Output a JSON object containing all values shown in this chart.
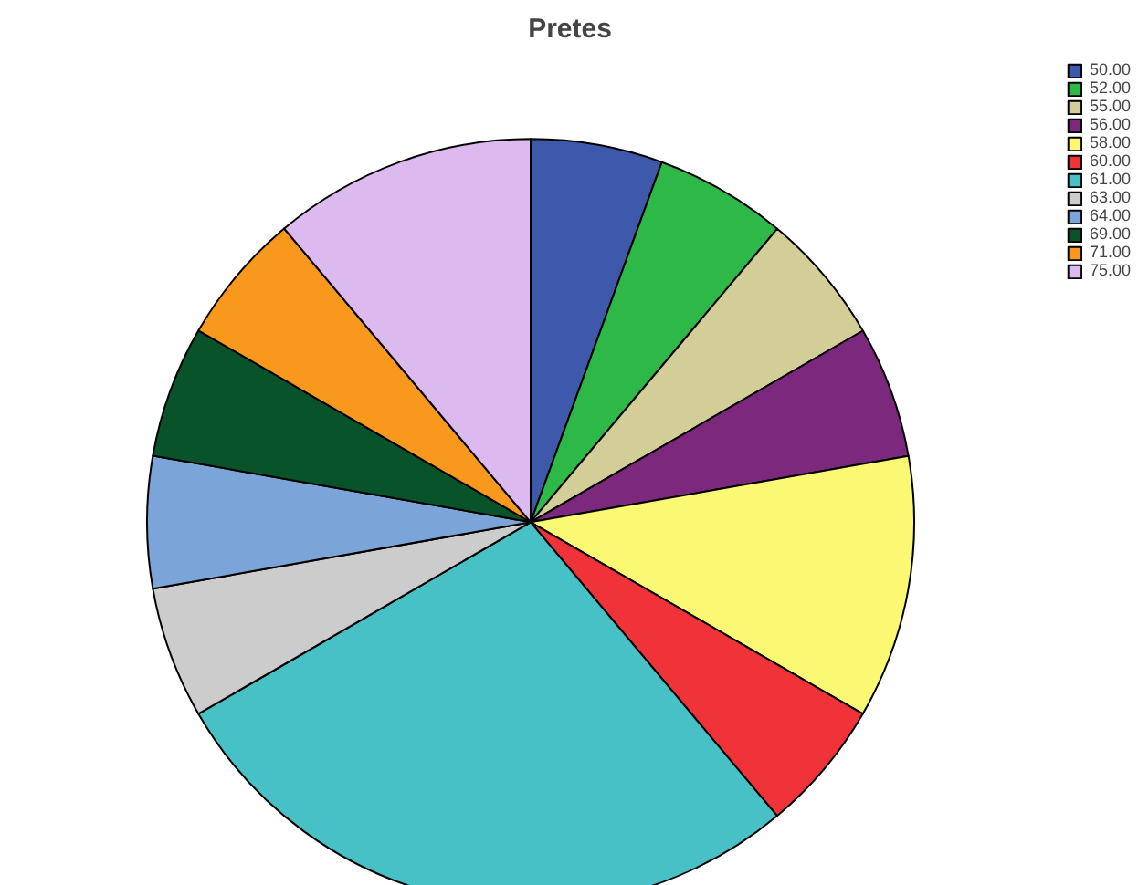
{
  "chart_data": {
    "type": "pie",
    "title": "Pretes",
    "categories": [
      "50.00",
      "52.00",
      "55.00",
      "56.00",
      "58.00",
      "60.00",
      "61.00",
      "63.00",
      "64.00",
      "69.00",
      "71.00",
      "75.00"
    ],
    "values": [
      5.56,
      5.56,
      5.56,
      5.56,
      11.11,
      5.56,
      27.78,
      5.56,
      5.56,
      5.56,
      5.56,
      11.11
    ],
    "colors": [
      "#3e58ac",
      "#2eb848",
      "#d3ce97",
      "#7c287d",
      "#fbf873",
      "#ef3338",
      "#48c1c6",
      "#cccccc",
      "#7ba4d8",
      "#09532b",
      "#f8981d",
      "#dcbaf0"
    ],
    "legend": "top right"
  }
}
